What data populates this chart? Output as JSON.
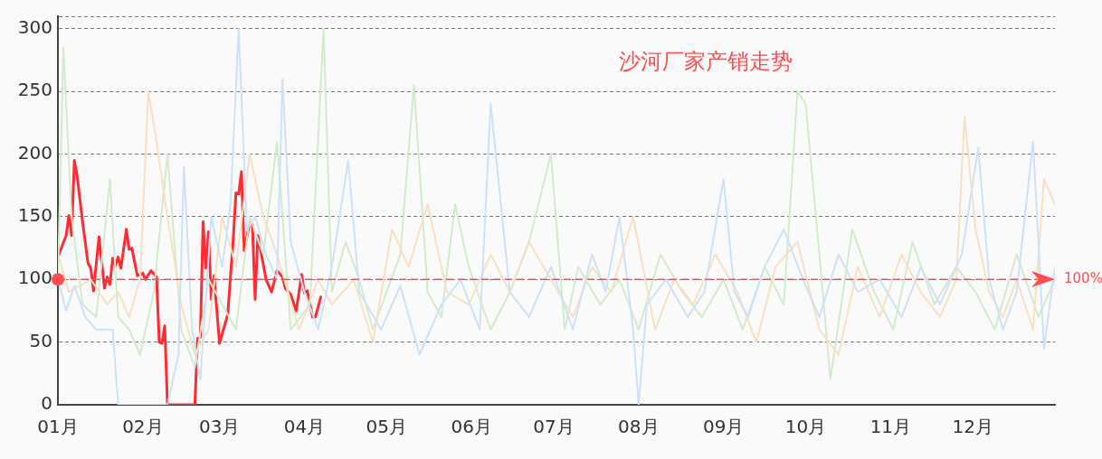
{
  "chart_data": {
    "type": "line",
    "title": "沙河厂家产销走势",
    "xlim": [
      "--01-01",
      "--12-31"
    ],
    "ylim": [
      0,
      310
    ],
    "xticks": [
      {
        "value": "--01-01",
        "label": "01月"
      },
      {
        "value": "--02-01",
        "label": "02月"
      },
      {
        "value": "--03-01",
        "label": "03月"
      },
      {
        "value": "--04-01",
        "label": "04月"
      },
      {
        "value": "--05-01",
        "label": "05月"
      },
      {
        "value": "--06-01",
        "label": "06月"
      },
      {
        "value": "--07-01",
        "label": "07月"
      },
      {
        "value": "--08-01",
        "label": "08月"
      },
      {
        "value": "--09-01",
        "label": "09月"
      },
      {
        "value": "--10-01",
        "label": "10月"
      },
      {
        "value": "--11-01",
        "label": "11月"
      },
      {
        "value": "--12-01",
        "label": "12月"
      }
    ],
    "yticks": [
      0,
      50,
      100,
      150,
      200,
      250,
      300,
      {
        "value": 310,
        "label": null
      }
    ],
    "grid": "y",
    "legend": false,
    "marker": "none",
    "line_style": "solid",
    "ref_lines": [
      {
        "axis": "y",
        "value": 100,
        "label": "100%",
        "color": "#ff4d4f",
        "line_style": "dashed"
      }
    ],
    "series": [
      {
        "color": "#cde2f7",
        "x": [
          "--01-01",
          "--01-04",
          "--01-07",
          "--01-11",
          "--01-15",
          "--01-21",
          "--01-23",
          "--01-26",
          "--02-10",
          "--02-14",
          "--02-16",
          "--02-19",
          "--02-22",
          "--02-26",
          "--03-02",
          "--03-05",
          "--03-08",
          "--03-11",
          "--03-14",
          "--03-18",
          "--03-22",
          "--03-24",
          "--03-27",
          "--04-01",
          "--04-06",
          "--04-11",
          "--04-17",
          "--04-21",
          "--04-29",
          "--05-06",
          "--05-13",
          "--05-21",
          "--05-28",
          "--06-04",
          "--06-08",
          "--06-15",
          "--06-22",
          "--06-30",
          "--07-08",
          "--07-15",
          "--07-20",
          "--07-25",
          "--07-30",
          "--08-01",
          "--08-04",
          "--08-11",
          "--08-19",
          "--08-25",
          "--09-01",
          "--09-05",
          "--09-10",
          "--09-16",
          "--09-23",
          "--09-30",
          "--10-06",
          "--10-13",
          "--10-20",
          "--10-28",
          "--11-05",
          "--11-12",
          "--11-19",
          "--11-27",
          "--12-03",
          "--12-07",
          "--12-12",
          "--12-17",
          "--12-23",
          "--12-27",
          "--12-31"
        ],
        "values": [
          100,
          75,
          95,
          70,
          60,
          60,
          0,
          0,
          0,
          40,
          190,
          60,
          20,
          150,
          110,
          160,
          300,
          140,
          150,
          120,
          100,
          260,
          130,
          90,
          60,
          110,
          195,
          90,
          60,
          95,
          40,
          80,
          100,
          60,
          240,
          90,
          70,
          110,
          60,
          120,
          90,
          150,
          60,
          0,
          80,
          100,
          70,
          90,
          180,
          90,
          70,
          110,
          140,
          100,
          70,
          120,
          90,
          100,
          70,
          110,
          80,
          120,
          205,
          100,
          60,
          90,
          210,
          45,
          110
        ]
      },
      {
        "color": "#f8e0c2",
        "x": [
          "--01-01",
          "--01-05",
          "--01-09",
          "--01-13",
          "--01-19",
          "--01-23",
          "--01-27",
          "--01-31",
          "--02-03",
          "--02-06",
          "--02-10",
          "--02-15",
          "--02-20",
          "--02-25",
          "--03-02",
          "--03-07",
          "--03-12",
          "--03-17",
          "--03-22",
          "--03-30",
          "--04-06",
          "--04-11",
          "--04-19",
          "--04-26",
          "--05-03",
          "--05-09",
          "--05-16",
          "--05-23",
          "--05-31",
          "--06-08",
          "--06-15",
          "--06-22",
          "--06-30",
          "--07-08",
          "--07-15",
          "--07-22",
          "--07-30",
          "--08-07",
          "--08-14",
          "--08-21",
          "--08-29",
          "--09-06",
          "--09-13",
          "--09-20",
          "--09-28",
          "--10-06",
          "--10-13",
          "--10-20",
          "--10-28",
          "--11-05",
          "--11-12",
          "--11-19",
          "--11-25",
          "--11-28",
          "--12-02",
          "--12-07",
          "--12-12",
          "--12-17",
          "--12-23",
          "--12-27",
          "--12-31"
        ],
        "values": [
          120,
          90,
          95,
          100,
          80,
          90,
          70,
          100,
          250,
          210,
          150,
          80,
          40,
          60,
          150,
          110,
          200,
          150,
          120,
          60,
          100,
          80,
          100,
          50,
          140,
          110,
          160,
          90,
          80,
          120,
          90,
          130,
          100,
          70,
          110,
          90,
          150,
          60,
          100,
          80,
          120,
          90,
          50,
          110,
          130,
          60,
          40,
          110,
          70,
          120,
          90,
          70,
          100,
          230,
          140,
          90,
          70,
          100,
          60,
          180,
          160
        ]
      },
      {
        "color": "#d3eacc",
        "x": [
          "--01-01",
          "--01-03",
          "--01-06",
          "--01-10",
          "--01-15",
          "--01-20",
          "--01-23",
          "--01-27",
          "--01-31",
          "--02-05",
          "--02-10",
          "--02-15",
          "--02-20",
          "--02-25",
          "--03-02",
          "--03-07",
          "--03-12",
          "--03-17",
          "--03-22",
          "--03-27",
          "--04-03",
          "--04-08",
          "--04-11",
          "--04-16",
          "--04-21",
          "--04-26",
          "--05-01",
          "--05-06",
          "--05-11",
          "--05-16",
          "--05-21",
          "--05-26",
          "--05-31",
          "--06-08",
          "--06-15",
          "--06-22",
          "--06-30",
          "--07-05",
          "--07-10",
          "--07-18",
          "--07-25",
          "--08-01",
          "--08-09",
          "--08-17",
          "--08-24",
          "--09-01",
          "--09-08",
          "--09-16",
          "--09-23",
          "--09-28",
          "--10-01",
          "--10-06",
          "--10-10",
          "--10-18",
          "--10-26",
          "--11-02",
          "--11-09",
          "--11-17",
          "--11-25",
          "--12-02",
          "--12-09",
          "--12-17",
          "--12-25",
          "--12-31"
        ],
        "values": [
          100,
          285,
          150,
          80,
          70,
          180,
          70,
          60,
          40,
          90,
          200,
          60,
          30,
          100,
          80,
          60,
          150,
          120,
          210,
          60,
          80,
          300,
          90,
          130,
          100,
          60,
          90,
          120,
          255,
          90,
          70,
          160,
          110,
          60,
          90,
          130,
          200,
          60,
          110,
          80,
          100,
          60,
          120,
          90,
          70,
          100,
          60,
          110,
          80,
          250,
          240,
          120,
          20,
          140,
          90,
          60,
          130,
          80,
          110,
          90,
          60,
          120,
          70,
          100
        ]
      },
      {
        "color": "#ff2a32",
        "x": [
          "--01-01",
          "--01-04",
          "--01-05",
          "--01-06",
          "--01-07",
          "--01-08",
          "--01-10",
          "--01-12",
          "--01-13",
          "--01-14",
          "--01-16",
          "--01-18",
          "--01-19",
          "--01-20",
          "--01-21",
          "--01-22",
          "--01-23",
          "--01-24",
          "--01-26",
          "--01-27",
          "--01-28",
          "--01-30",
          "--02-01",
          "--02-02",
          "--02-04",
          "--02-06",
          "--02-07",
          "--02-08",
          "--02-09",
          "--02-10",
          "--02-20",
          "--02-21",
          "--02-22",
          "--02-23",
          "--02-24",
          "--02-25",
          "--02-26",
          "--02-27",
          "--03-01",
          "--03-04",
          "--03-06",
          "--03-07",
          "--03-08",
          "--03-09",
          "--03-10",
          "--03-12",
          "--03-13",
          "--03-14",
          "--03-15",
          "--03-18",
          "--03-20",
          "--03-22",
          "--03-24",
          "--03-25",
          "--03-27",
          "--03-29",
          "--03-31",
          "--04-01",
          "--04-02",
          "--04-04",
          "--04-05",
          "--04-07"
        ],
        "values": [
          118,
          135,
          151,
          135,
          195,
          183,
          146,
          113,
          109,
          91,
          134,
          93,
          102,
          96,
          117,
          111,
          118,
          109,
          140,
          124,
          125,
          103,
          105,
          100,
          107,
          102,
          50,
          49,
          63,
          0,
          0,
          53,
          54,
          146,
          109,
          138,
          84,
          103,
          49,
          72,
          132,
          169,
          168,
          186,
          123,
          145,
          144,
          84,
          135,
          100,
          90,
          107,
          102,
          93,
          88,
          75,
          104,
          89,
          91,
          70,
          70,
          86
        ]
      }
    ]
  }
}
